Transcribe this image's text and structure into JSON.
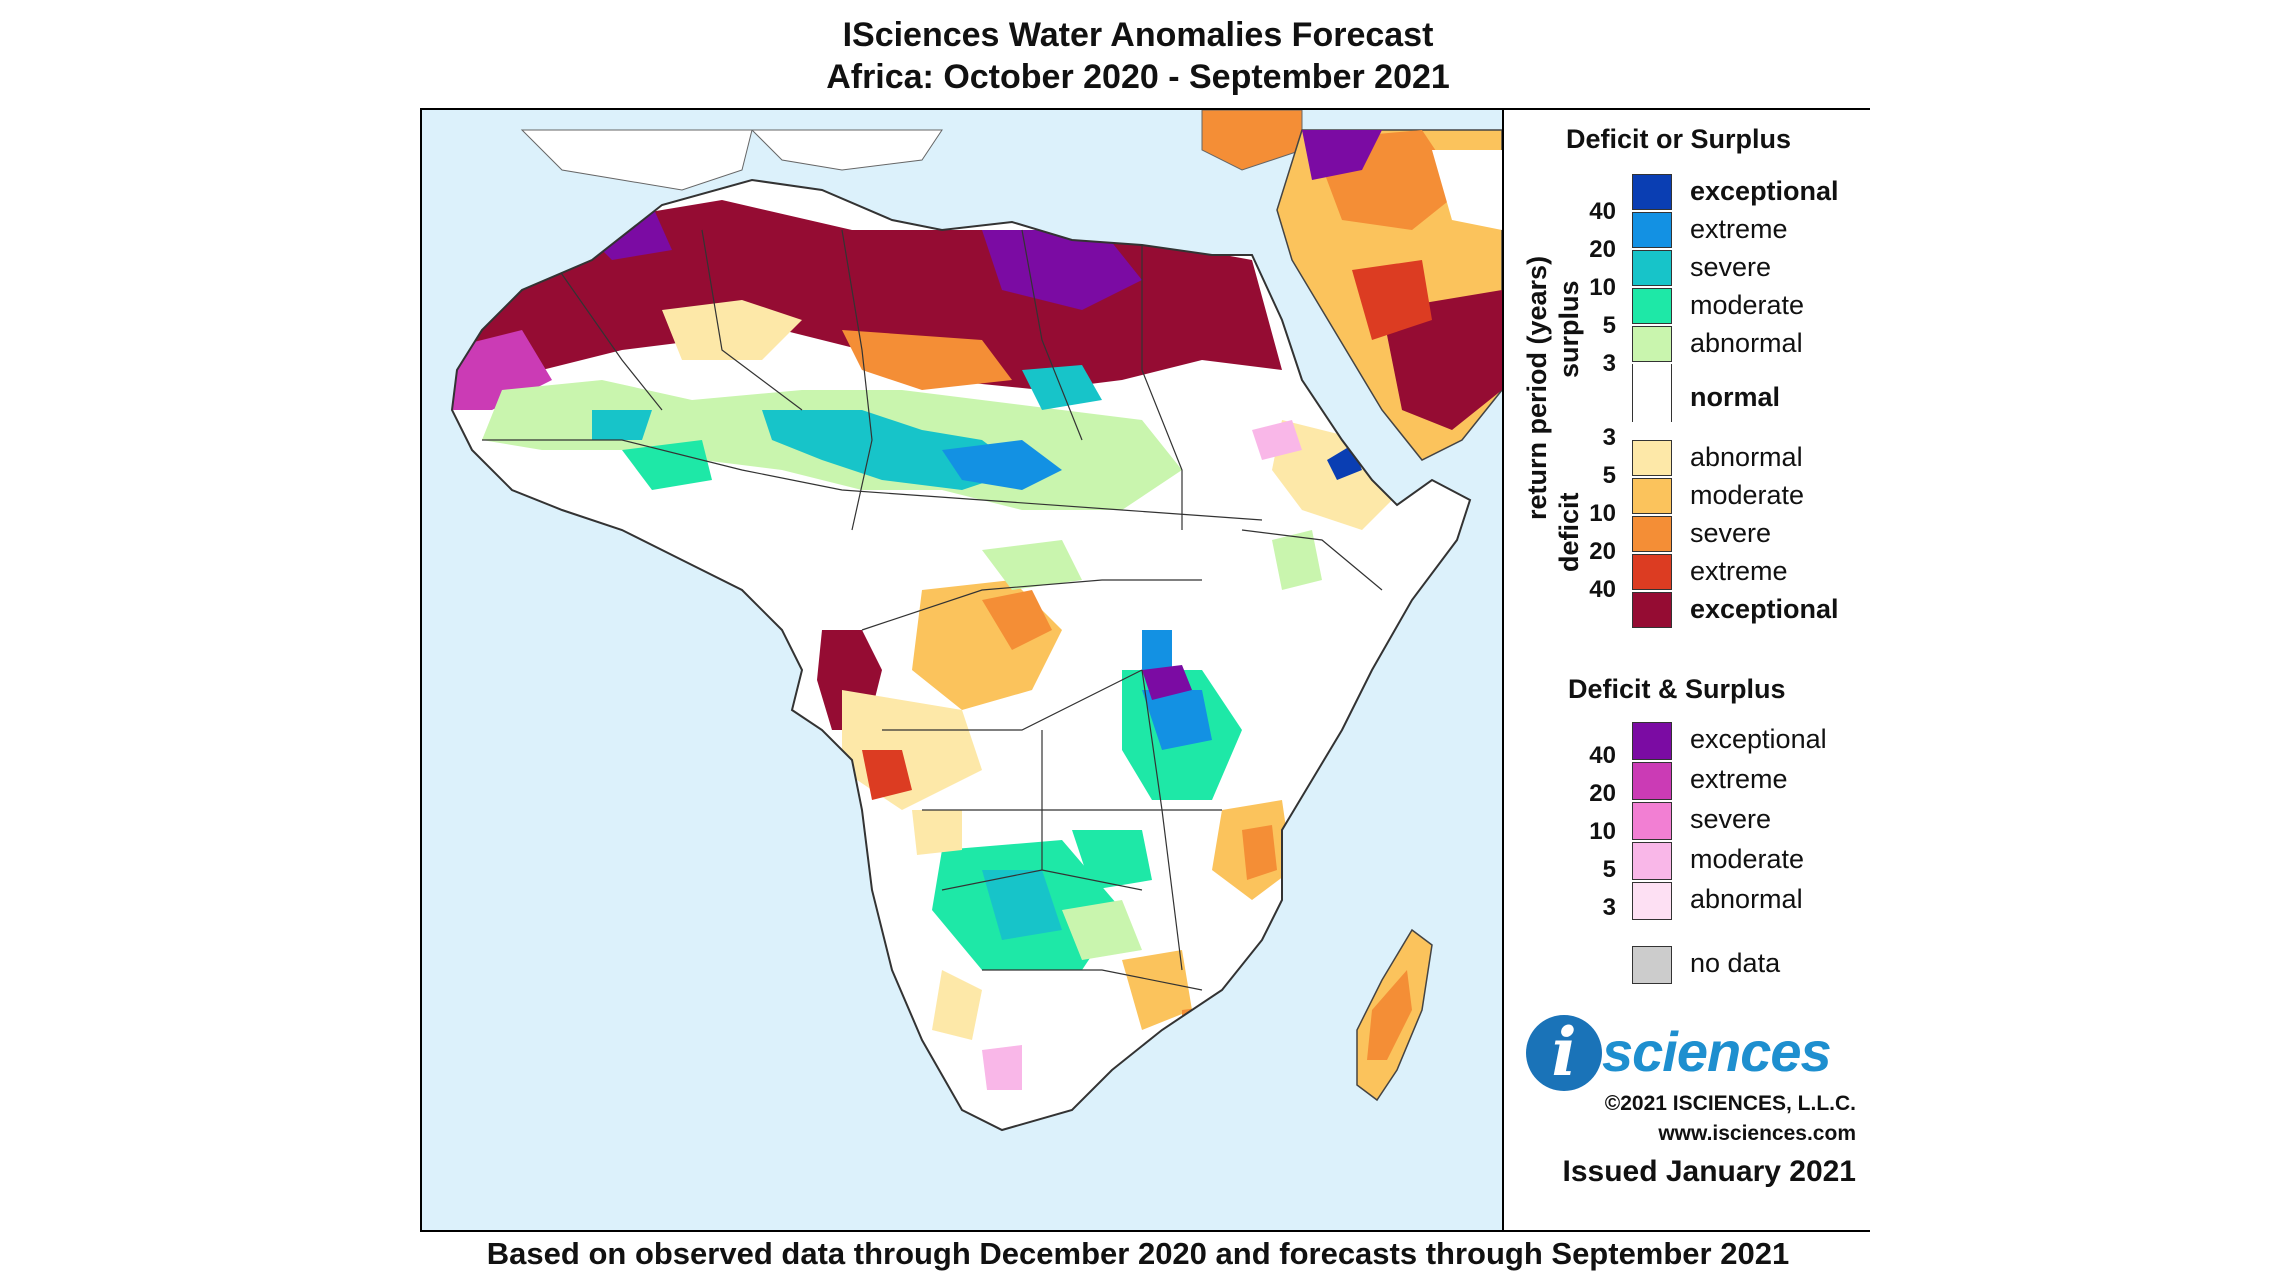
{
  "title_line1": "ISciences Water Anomalies Forecast",
  "title_line2": "Africa: October 2020 - September 2021",
  "footer": "Based on observed data through December 2020 and forecasts through September 2021",
  "legend": {
    "heading_primary": "Deficit or Surplus",
    "axis_label": "return period (years)",
    "surplus_label": "surplus",
    "deficit_label": "deficit",
    "surplus_numbers": [
      "40",
      "20",
      "10",
      "5",
      "3"
    ],
    "deficit_numbers": [
      "3",
      "5",
      "10",
      "20",
      "40"
    ],
    "surplus": [
      {
        "label": "exceptional",
        "color": "#0a3eb3"
      },
      {
        "label": "extreme",
        "color": "#1391e3"
      },
      {
        "label": "severe",
        "color": "#17c4c9"
      },
      {
        "label": "moderate",
        "color": "#1ee8a7"
      },
      {
        "label": "abnormal",
        "color": "#c9f5ae"
      }
    ],
    "normal": {
      "label": "normal",
      "color": "#ffffff"
    },
    "deficit": [
      {
        "label": "abnormal",
        "color": "#fde8a8"
      },
      {
        "label": "moderate",
        "color": "#fbc35c"
      },
      {
        "label": "severe",
        "color": "#f48e36"
      },
      {
        "label": "extreme",
        "color": "#dc3c22"
      },
      {
        "label": "exceptional",
        "color": "#950c33"
      }
    ],
    "heading_both": "Deficit & Surplus",
    "both_numbers": [
      "40",
      "20",
      "10",
      "5",
      "3"
    ],
    "both": [
      {
        "label": "exceptional",
        "color": "#7b0ba3"
      },
      {
        "label": "extreme",
        "color": "#cb3bb5"
      },
      {
        "label": "severe",
        "color": "#f27fd3"
      },
      {
        "label": "moderate",
        "color": "#f9b7e8"
      },
      {
        "label": "abnormal",
        "color": "#fde0f3"
      }
    ],
    "nodata": {
      "label": "no data",
      "color": "#cccccc"
    }
  },
  "logo": {
    "i": "i",
    "text": "sciences"
  },
  "copyright": "©2021 ISCIENCES, L.L.C.",
  "website": "www.isciences.com",
  "issued": "Issued January 2021"
}
